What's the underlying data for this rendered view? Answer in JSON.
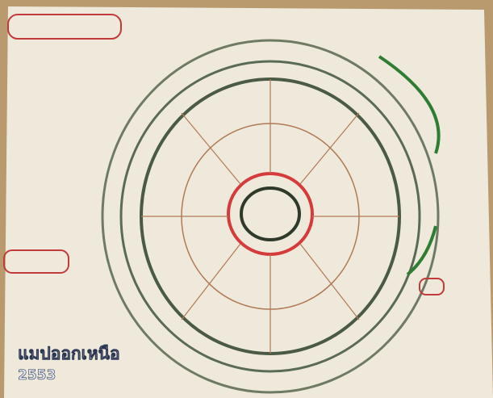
{
  "overlay": {
    "place": "แมปออกเหนือ",
    "year": "2553"
  }
}
